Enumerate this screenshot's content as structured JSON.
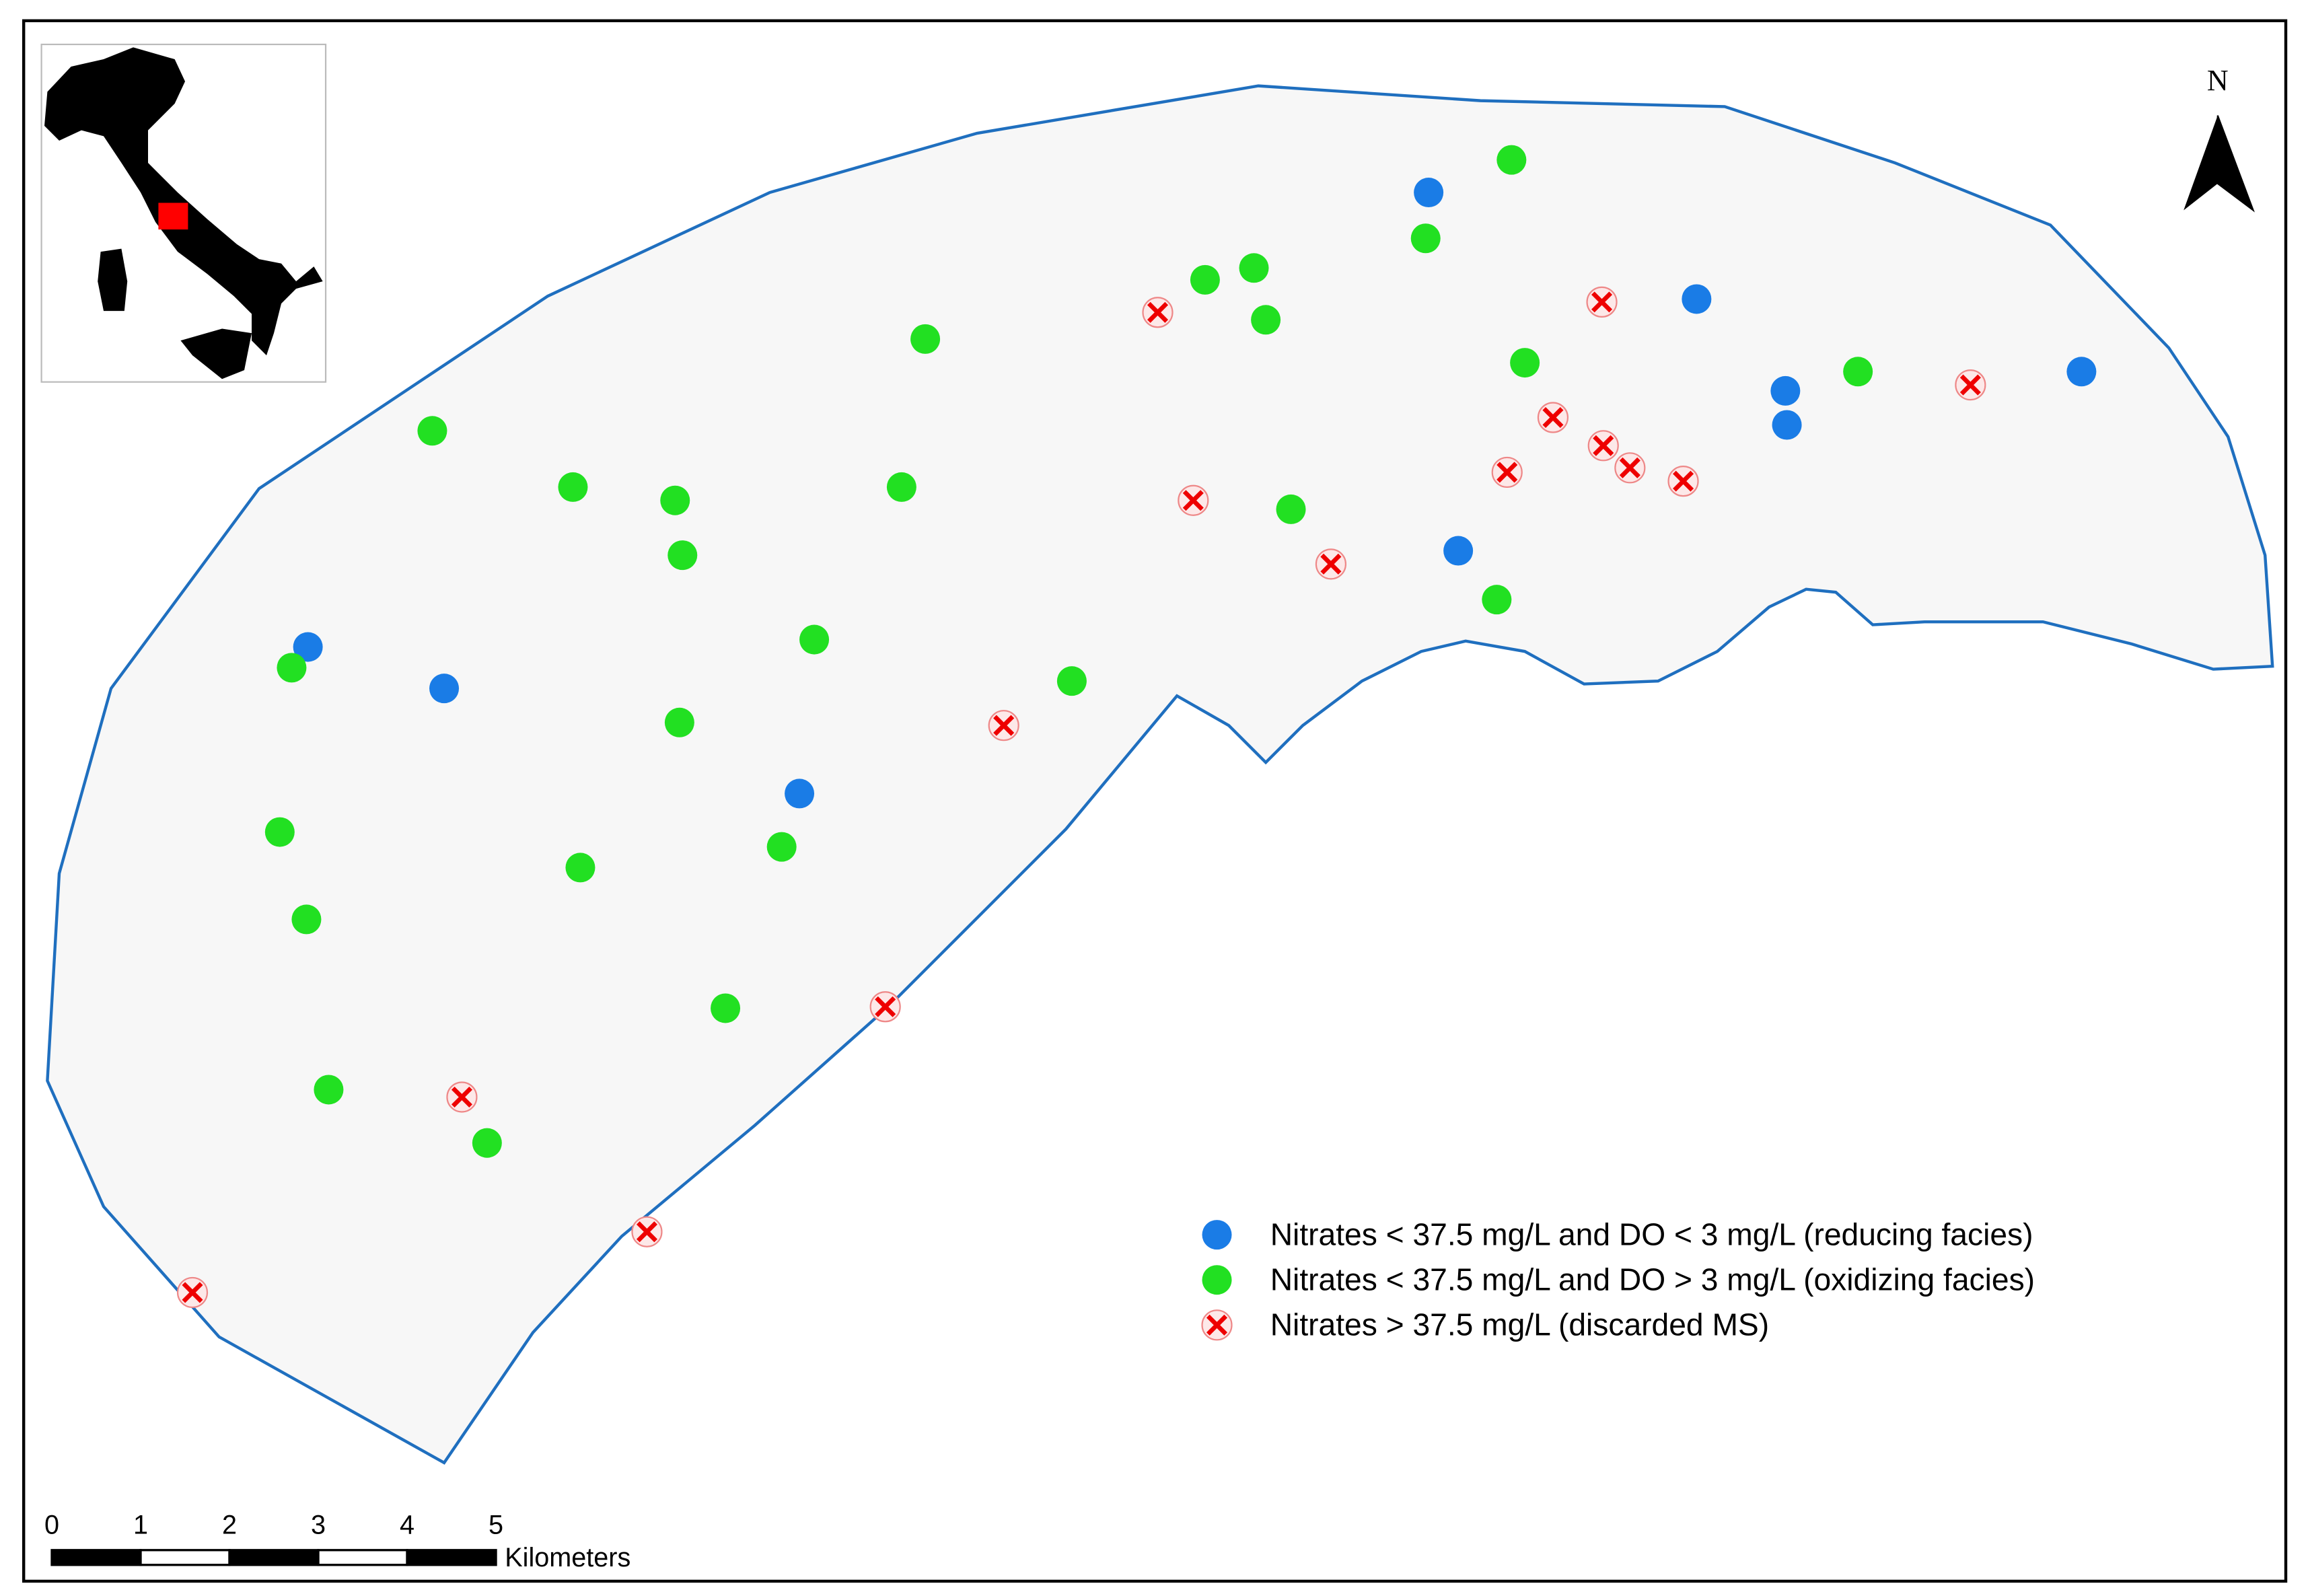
{
  "north_arrow": {
    "label": "N"
  },
  "legend": {
    "items": [
      {
        "symbol": "blue-circle",
        "label": "Nitrates  < 37.5 mg/L and DO < 3 mg/L (reducing facies)"
      },
      {
        "symbol": "green-circle",
        "label": "Nitrates < 37.5 mg/L and DO > 3 mg/L (oxidizing facies)"
      },
      {
        "symbol": "red-cross",
        "label": "Nitrates > 37.5 mg/L (discarded MS)"
      }
    ]
  },
  "scale_bar": {
    "ticks": [
      0,
      1,
      2,
      3,
      4,
      5
    ],
    "unit": "Kilometers"
  }
}
